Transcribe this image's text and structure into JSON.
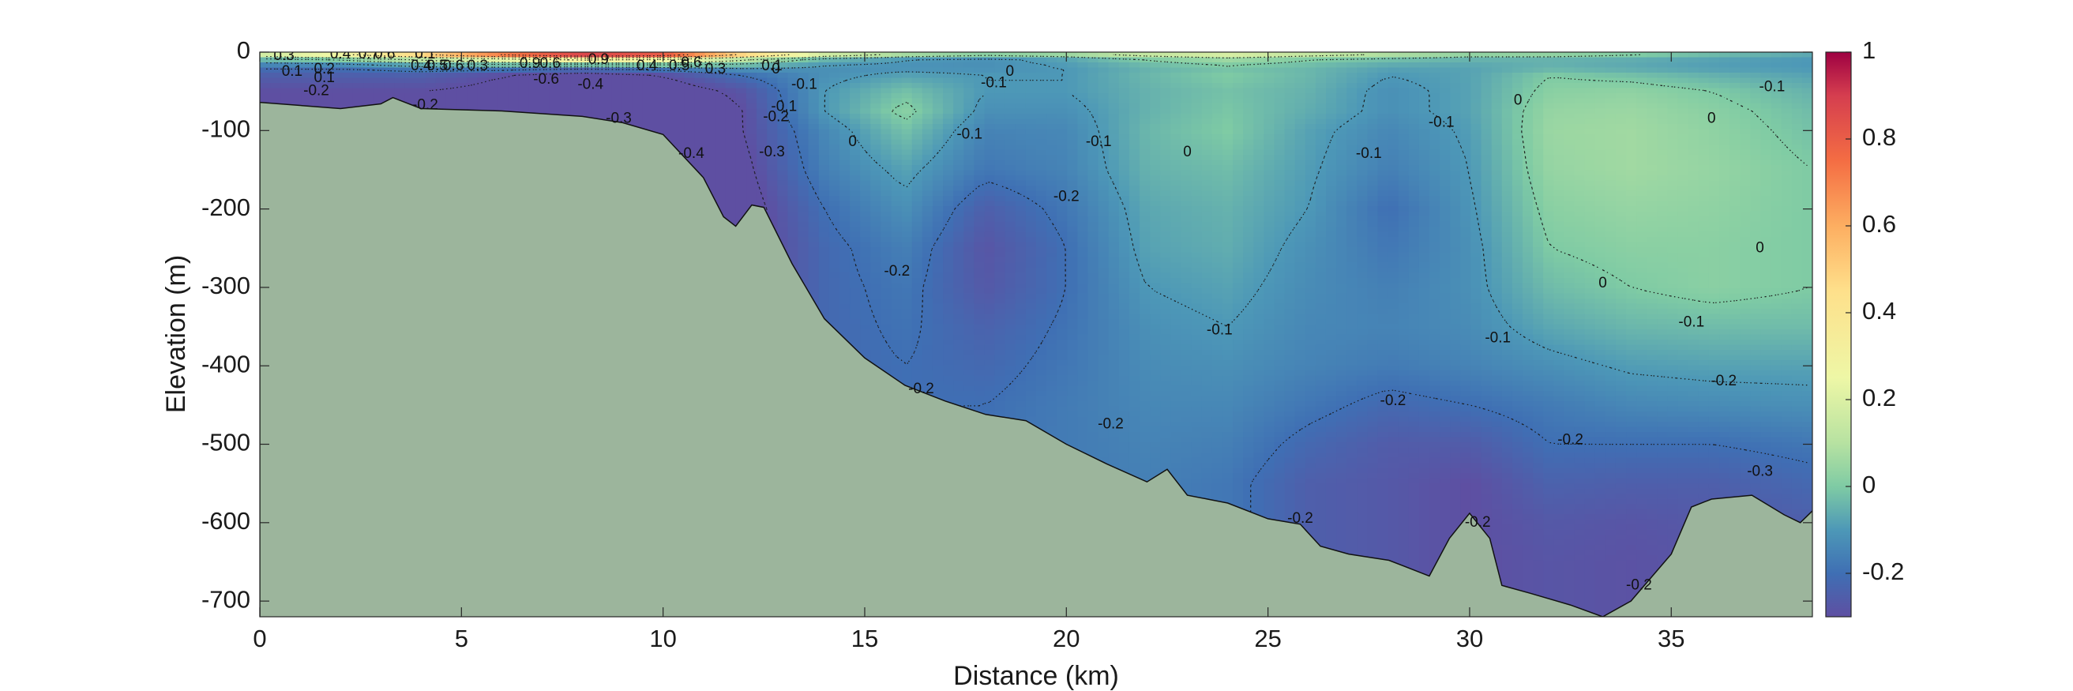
{
  "chart_data": {
    "type": "heatmap",
    "xlabel": "Distance (km)",
    "ylabel": "Elevation (m)",
    "xlim": [
      0,
      38.5
    ],
    "ylim": [
      -720,
      0
    ],
    "x_ticks": [
      "0",
      "5",
      "10",
      "15",
      "20",
      "25",
      "30",
      "35"
    ],
    "x_tick_values": [
      0,
      5,
      10,
      15,
      20,
      25,
      30,
      35
    ],
    "y_ticks": [
      "0",
      "-100",
      "-200",
      "-300",
      "-400",
      "-500",
      "-600",
      "-700"
    ],
    "y_tick_values": [
      0,
      -100,
      -200,
      -300,
      -400,
      -500,
      -600,
      -700
    ],
    "colorbar": {
      "colormap": "spectral",
      "range": [
        -0.3,
        1.0
      ],
      "ticks": [
        "1",
        "0.8",
        "0.6",
        "0.4",
        "0.2",
        "0",
        "-0.2"
      ],
      "tick_values": [
        1,
        0.8,
        0.6,
        0.4,
        0.2,
        0,
        -0.2
      ],
      "stops": [
        {
          "value": -0.3,
          "color": "#5e4fa2"
        },
        {
          "value": -0.2,
          "color": "#3f6fb4"
        },
        {
          "value": -0.1,
          "color": "#4d98b7"
        },
        {
          "value": 0.0,
          "color": "#7fcba4"
        },
        {
          "value": 0.1,
          "color": "#b7e2a1"
        },
        {
          "value": 0.25,
          "color": "#eef7a6"
        },
        {
          "value": 0.45,
          "color": "#fee08b"
        },
        {
          "value": 0.6,
          "color": "#fdae61"
        },
        {
          "value": 0.75,
          "color": "#f46d43"
        },
        {
          "value": 0.9,
          "color": "#d53e4f"
        },
        {
          "value": 1.0,
          "color": "#9e0142"
        }
      ]
    },
    "bathymetry_color": "#9cb59c",
    "bathymetry": [
      [
        0,
        -64
      ],
      [
        1,
        -68
      ],
      [
        2,
        -72
      ],
      [
        3,
        -66
      ],
      [
        3.3,
        -58
      ],
      [
        4,
        -72
      ],
      [
        6,
        -75
      ],
      [
        8,
        -82
      ],
      [
        9,
        -90
      ],
      [
        10,
        -105
      ],
      [
        11,
        -160
      ],
      [
        11.5,
        -210
      ],
      [
        11.8,
        -222
      ],
      [
        12.2,
        -195
      ],
      [
        12.5,
        -198
      ],
      [
        13.2,
        -270
      ],
      [
        14,
        -340
      ],
      [
        15,
        -390
      ],
      [
        16,
        -425
      ],
      [
        17,
        -445
      ],
      [
        18,
        -462
      ],
      [
        19,
        -470
      ],
      [
        20,
        -500
      ],
      [
        21,
        -525
      ],
      [
        22,
        -548
      ],
      [
        22.5,
        -532
      ],
      [
        23,
        -565
      ],
      [
        23.5,
        -570
      ],
      [
        24,
        -575
      ],
      [
        25,
        -595
      ],
      [
        25.8,
        -602
      ],
      [
        26.3,
        -630
      ],
      [
        27,
        -640
      ],
      [
        28,
        -648
      ],
      [
        29,
        -668
      ],
      [
        29.5,
        -620
      ],
      [
        30,
        -588
      ],
      [
        30.5,
        -620
      ],
      [
        30.8,
        -680
      ],
      [
        31.5,
        -690
      ],
      [
        32.5,
        -705
      ],
      [
        33.3,
        -720
      ],
      [
        34,
        -700
      ],
      [
        35,
        -640
      ],
      [
        35.5,
        -580
      ],
      [
        36,
        -570
      ],
      [
        37,
        -565
      ],
      [
        37.8,
        -590
      ],
      [
        38.2,
        -600
      ],
      [
        38.5,
        -585
      ]
    ],
    "field": {
      "x": [
        0,
        2,
        4,
        6,
        8,
        10,
        12,
        14,
        16,
        18,
        20,
        22,
        24,
        26,
        28,
        30,
        32,
        34,
        36,
        38.5
      ],
      "y": [
        0,
        -5,
        -10,
        -20,
        -30,
        -50,
        -75,
        -100,
        -150,
        -200,
        -250,
        -300,
        -350,
        -400,
        -450,
        -500,
        -550,
        -600,
        -650,
        -720
      ],
      "values": [
        [
          0.3,
          0.4,
          0.6,
          0.9,
          1.0,
          1.0,
          0.6,
          0.3,
          0.2,
          0.15,
          0.15,
          0.2,
          0.25,
          0.2,
          0.15,
          0.1,
          0.1,
          0.05,
          0.0,
          -0.05
        ],
        [
          0.1,
          0.2,
          0.4,
          0.6,
          0.8,
          0.7,
          0.4,
          0.1,
          0.0,
          -0.05,
          0.0,
          0.1,
          0.15,
          0.1,
          0.05,
          0.0,
          0.0,
          -0.02,
          -0.05,
          -0.08
        ],
        [
          -0.05,
          0.0,
          0.1,
          0.2,
          0.3,
          0.25,
          0.1,
          -0.05,
          -0.1,
          -0.12,
          -0.08,
          0.0,
          0.05,
          0.0,
          -0.03,
          -0.05,
          -0.05,
          -0.06,
          -0.08,
          -0.1
        ],
        [
          -0.2,
          -0.2,
          -0.15,
          -0.15,
          -0.2,
          -0.15,
          -0.1,
          -0.12,
          -0.12,
          -0.12,
          -0.1,
          -0.05,
          -0.02,
          -0.04,
          -0.08,
          -0.08,
          -0.05,
          -0.07,
          -0.09,
          -0.1
        ],
        [
          -0.25,
          -0.25,
          -0.25,
          -0.3,
          -0.35,
          -0.3,
          -0.2,
          -0.12,
          -0.08,
          -0.1,
          -0.1,
          -0.04,
          0.0,
          -0.04,
          -0.1,
          -0.08,
          0.0,
          -0.02,
          -0.05,
          -0.08
        ],
        [
          -0.3,
          -0.3,
          -0.3,
          -0.32,
          -0.35,
          -0.35,
          -0.28,
          -0.1,
          -0.02,
          -0.1,
          -0.1,
          -0.05,
          -0.02,
          -0.05,
          -0.12,
          -0.08,
          0.02,
          0.03,
          0.0,
          -0.05
        ],
        [
          -0.3,
          -0.3,
          -0.3,
          -0.32,
          -0.35,
          -0.38,
          -0.3,
          -0.1,
          0.02,
          -0.12,
          -0.12,
          -0.05,
          -0.01,
          -0.06,
          -0.12,
          -0.08,
          0.04,
          0.05,
          0.02,
          -0.03
        ],
        [
          -0.3,
          -0.3,
          -0.3,
          -0.32,
          -0.36,
          -0.4,
          -0.3,
          -0.14,
          -0.02,
          -0.15,
          -0.14,
          -0.04,
          0.0,
          -0.08,
          -0.14,
          -0.09,
          0.05,
          0.06,
          0.03,
          -0.02
        ],
        [
          -0.3,
          -0.3,
          -0.3,
          -0.32,
          -0.36,
          -0.4,
          -0.32,
          -0.16,
          -0.08,
          -0.18,
          -0.15,
          -0.05,
          -0.03,
          -0.09,
          -0.16,
          -0.1,
          0.04,
          0.06,
          0.04,
          0.0
        ],
        [
          -0.3,
          -0.3,
          -0.3,
          -0.32,
          -0.36,
          -0.4,
          -0.34,
          -0.2,
          -0.12,
          -0.25,
          -0.18,
          -0.07,
          -0.05,
          -0.1,
          -0.2,
          -0.11,
          0.02,
          0.04,
          0.03,
          0.0
        ],
        [
          -0.3,
          -0.3,
          -0.3,
          -0.32,
          -0.36,
          -0.4,
          -0.34,
          -0.22,
          -0.16,
          -0.28,
          -0.2,
          -0.08,
          -0.06,
          -0.12,
          -0.18,
          -0.12,
          0.0,
          0.02,
          0.02,
          0.0
        ],
        [
          -0.3,
          -0.3,
          -0.3,
          -0.32,
          -0.36,
          -0.4,
          -0.34,
          -0.22,
          -0.18,
          -0.27,
          -0.2,
          -0.1,
          -0.08,
          -0.13,
          -0.16,
          -0.12,
          -0.03,
          0.0,
          0.02,
          0.0
        ],
        [
          -0.3,
          -0.3,
          -0.3,
          -0.32,
          -0.36,
          -0.4,
          -0.34,
          -0.22,
          -0.19,
          -0.24,
          -0.19,
          -0.12,
          -0.1,
          -0.14,
          -0.15,
          -0.13,
          -0.07,
          -0.04,
          -0.03,
          -0.03
        ],
        [
          -0.3,
          -0.3,
          -0.3,
          -0.32,
          -0.36,
          -0.4,
          -0.34,
          -0.22,
          -0.2,
          -0.22,
          -0.18,
          -0.13,
          -0.12,
          -0.15,
          -0.17,
          -0.15,
          -0.12,
          -0.09,
          -0.08,
          -0.08
        ],
        [
          -0.3,
          -0.3,
          -0.3,
          -0.32,
          -0.36,
          -0.4,
          -0.34,
          -0.22,
          -0.2,
          -0.2,
          -0.17,
          -0.14,
          -0.14,
          -0.18,
          -0.22,
          -0.2,
          -0.17,
          -0.14,
          -0.13,
          -0.12
        ],
        [
          -0.3,
          -0.3,
          -0.3,
          -0.32,
          -0.36,
          -0.4,
          -0.34,
          -0.22,
          -0.2,
          -0.19,
          -0.17,
          -0.15,
          -0.16,
          -0.22,
          -0.26,
          -0.26,
          -0.2,
          -0.2,
          -0.2,
          -0.18
        ],
        [
          -0.3,
          -0.3,
          -0.3,
          -0.32,
          -0.36,
          -0.4,
          -0.34,
          -0.22,
          -0.2,
          -0.19,
          -0.17,
          -0.16,
          -0.18,
          -0.25,
          -0.27,
          -0.3,
          -0.24,
          -0.25,
          -0.25,
          -0.22
        ],
        [
          -0.3,
          -0.3,
          -0.3,
          -0.32,
          -0.36,
          -0.4,
          -0.34,
          -0.22,
          -0.2,
          -0.19,
          -0.17,
          -0.16,
          -0.18,
          -0.25,
          -0.27,
          -0.3,
          -0.27,
          -0.28,
          -0.27,
          -0.25
        ],
        [
          -0.3,
          -0.3,
          -0.3,
          -0.32,
          -0.36,
          -0.4,
          -0.34,
          -0.22,
          -0.2,
          -0.19,
          -0.17,
          -0.16,
          -0.18,
          -0.25,
          -0.27,
          -0.3,
          -0.28,
          -0.29,
          -0.28,
          -0.26
        ],
        [
          -0.3,
          -0.3,
          -0.3,
          -0.32,
          -0.36,
          -0.4,
          -0.34,
          -0.22,
          -0.2,
          -0.19,
          -0.17,
          -0.16,
          -0.18,
          -0.25,
          -0.27,
          -0.3,
          -0.28,
          -0.29,
          -0.28,
          -0.26
        ]
      ]
    },
    "contour_labels": [
      {
        "text": "0.3",
        "x": 0.6,
        "y": -5
      },
      {
        "text": "0.4",
        "x": 2.0,
        "y": -3
      },
      {
        "text": "0.7",
        "x": 2.7,
        "y": -3
      },
      {
        "text": "0.6",
        "x": 3.1,
        "y": -3
      },
      {
        "text": "0.1",
        "x": 4.1,
        "y": -3
      },
      {
        "text": "0.2",
        "x": 1.6,
        "y": -22
      },
      {
        "text": "0.1",
        "x": 0.8,
        "y": -25
      },
      {
        "text": "0.1",
        "x": 1.6,
        "y": -33
      },
      {
        "text": "-0.2",
        "x": 1.4,
        "y": -50
      },
      {
        "text": "0.4",
        "x": 4.0,
        "y": -18
      },
      {
        "text": "0.5",
        "x": 4.4,
        "y": -18
      },
      {
        "text": "0.6",
        "x": 4.8,
        "y": -18
      },
      {
        "text": "0.3",
        "x": 5.4,
        "y": -18
      },
      {
        "text": "0.9",
        "x": 6.7,
        "y": -15
      },
      {
        "text": "0.6",
        "x": 7.2,
        "y": -15
      },
      {
        "text": "0.9",
        "x": 8.4,
        "y": -10
      },
      {
        "text": "0.4",
        "x": 9.6,
        "y": -18
      },
      {
        "text": "0.5",
        "x": 10.4,
        "y": -18
      },
      {
        "text": "0.6",
        "x": 10.7,
        "y": -14
      },
      {
        "text": "0.3",
        "x": 11.3,
        "y": -22
      },
      {
        "text": "0.1",
        "x": 12.7,
        "y": -18
      },
      {
        "text": "0",
        "x": 12.8,
        "y": -22
      },
      {
        "text": "-0.6",
        "x": 7.1,
        "y": -35
      },
      {
        "text": "-0.4",
        "x": 8.2,
        "y": -42
      },
      {
        "text": "-0.2",
        "x": 4.1,
        "y": -68
      },
      {
        "text": "-0.3",
        "x": 8.9,
        "y": -85
      },
      {
        "text": "-0.4",
        "x": 10.7,
        "y": -130
      },
      {
        "text": "-0.3",
        "x": 12.7,
        "y": -128
      },
      {
        "text": "-0.2",
        "x": 12.8,
        "y": -83
      },
      {
        "text": "-0.1",
        "x": 13.0,
        "y": -70
      },
      {
        "text": "-0.1",
        "x": 13.5,
        "y": -42
      },
      {
        "text": "0",
        "x": 18.6,
        "y": -25
      },
      {
        "text": "-0.1",
        "x": 18.2,
        "y": -40
      },
      {
        "text": "0",
        "x": 14.7,
        "y": -115
      },
      {
        "text": "-0.1",
        "x": 17.6,
        "y": -105
      },
      {
        "text": "-0.1",
        "x": 20.8,
        "y": -115
      },
      {
        "text": "-0.2",
        "x": 20.0,
        "y": -185
      },
      {
        "text": "-0.2",
        "x": 15.8,
        "y": -280
      },
      {
        "text": "0",
        "x": 23.0,
        "y": -128
      },
      {
        "text": "-0.1",
        "x": 23.8,
        "y": -355
      },
      {
        "text": "-0.1",
        "x": 27.5,
        "y": -130
      },
      {
        "text": "-0.1",
        "x": 29.3,
        "y": -90
      },
      {
        "text": "-0.2",
        "x": 16.4,
        "y": -430
      },
      {
        "text": "-0.2",
        "x": 21.1,
        "y": -475
      },
      {
        "text": "-0.2",
        "x": 25.8,
        "y": -595
      },
      {
        "text": "0",
        "x": 31.2,
        "y": -62
      },
      {
        "text": "0",
        "x": 36.0,
        "y": -85
      },
      {
        "text": "-0.1",
        "x": 37.5,
        "y": -45
      },
      {
        "text": "0",
        "x": 37.2,
        "y": -250
      },
      {
        "text": "0",
        "x": 33.3,
        "y": -295
      },
      {
        "text": "-0.1",
        "x": 30.7,
        "y": -365
      },
      {
        "text": "-0.1",
        "x": 35.5,
        "y": -345
      },
      {
        "text": "-0.2",
        "x": 28.1,
        "y": -445
      },
      {
        "text": "-0.2",
        "x": 32.5,
        "y": -495
      },
      {
        "text": "-0.2",
        "x": 36.3,
        "y": -420
      },
      {
        "text": "-0.3",
        "x": 37.2,
        "y": -535
      },
      {
        "text": "-0.2",
        "x": 30.2,
        "y": -600
      },
      {
        "text": "-0.2",
        "x": 34.2,
        "y": -680
      }
    ]
  }
}
